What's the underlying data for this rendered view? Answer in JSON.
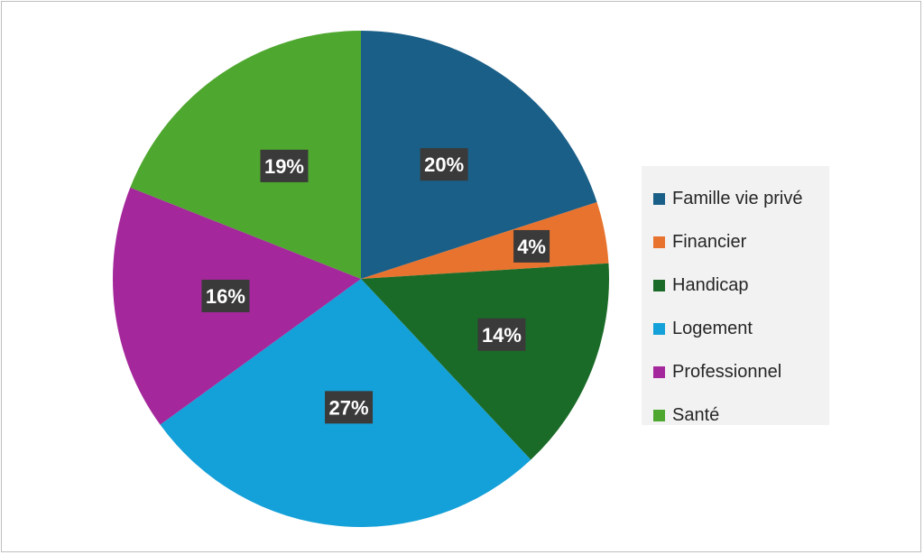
{
  "chart_data": {
    "type": "pie",
    "title": "",
    "categories": [
      "Famille vie privé",
      "Financier",
      "Handicap",
      "Logement",
      "Professionnel",
      "Santé"
    ],
    "values": [
      20,
      4,
      14,
      27,
      16,
      19
    ],
    "data_labels": [
      "20%",
      "4%",
      "14%",
      "27%",
      "16%",
      "19%"
    ],
    "colors": [
      "#1a5f87",
      "#e8732e",
      "#1b6b28",
      "#14a0d8",
      "#a4289b",
      "#4ea72e"
    ],
    "label_box_color": "#3a3a3a",
    "legend_position": "right",
    "start_angle": "12 o'clock",
    "direction": "clockwise"
  },
  "legend": {
    "items": [
      {
        "label": "Famille vie privé",
        "color": "#1a5f87"
      },
      {
        "label": "Financier",
        "color": "#e8732e"
      },
      {
        "label": "Handicap",
        "color": "#1b6b28"
      },
      {
        "label": "Logement",
        "color": "#14a0d8"
      },
      {
        "label": "Professionnel",
        "color": "#a4289b"
      },
      {
        "label": "Santé",
        "color": "#4ea72e"
      }
    ]
  }
}
